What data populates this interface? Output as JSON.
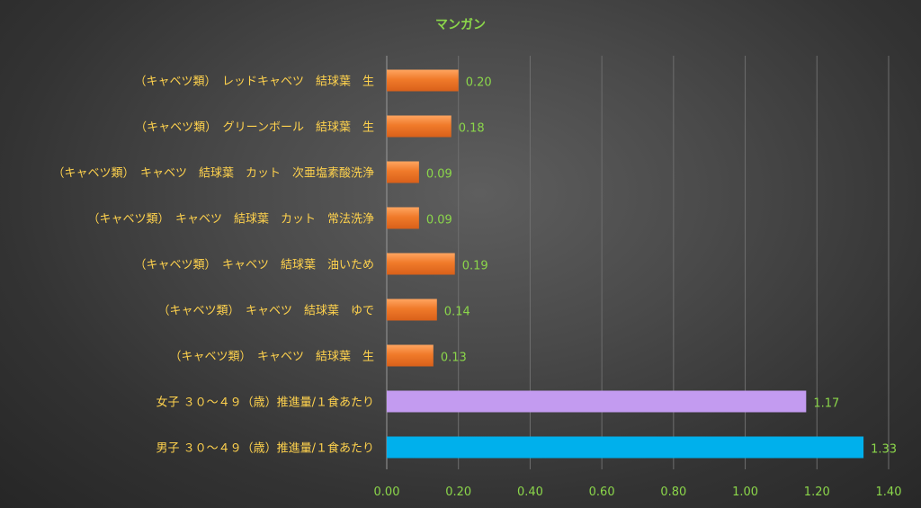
{
  "chart_data": {
    "type": "bar",
    "orientation": "horizontal",
    "title": "マンガン",
    "xlabel": "",
    "ylabel": "",
    "xlim": [
      0,
      1.4
    ],
    "ticks": [
      "0.00",
      "0.20",
      "0.40",
      "0.60",
      "0.80",
      "1.00",
      "1.20",
      "1.40"
    ],
    "grid": true,
    "legend": "none",
    "categories": [
      "（キャベツ類）　レッドキャベツ　結球葉　生",
      "（キャベツ類）　グリーンボール　結球葉　生",
      "（キャベツ類）　キャベツ　結球葉　カット　次亜塩素酸洗浄",
      "（キャベツ類）　キャベツ　結球葉　カット　常法洗浄",
      "（キャベツ類）　キャベツ　結球葉　油いため",
      "（キャベツ類）　キャベツ　結球葉　ゆで",
      "（キャベツ類）　キャベツ　結球葉　生",
      "女子 ３０～４９（歳）推進量/１食あたり",
      "男子 ３０～４９（歳）推進量/１食あたり"
    ],
    "values": [
      0.2,
      0.18,
      0.09,
      0.09,
      0.19,
      0.14,
      0.13,
      1.17,
      1.33
    ],
    "value_labels": [
      "0.20",
      "0.18",
      "0.09",
      "0.09",
      "0.19",
      "0.14",
      "0.13",
      "1.17",
      "1.33"
    ],
    "bar_colors": [
      "#f07a2a",
      "#f07a2a",
      "#f07a2a",
      "#f07a2a",
      "#f07a2a",
      "#f07a2a",
      "#f07a2a",
      "#c39bf0",
      "#00b0ec"
    ],
    "colors": {
      "title": "#8bd64a",
      "category_label": "#ffd24d",
      "tick_label": "#8bd64a",
      "value_label": "#8bd64a",
      "gridline": "#6e6e6e"
    }
  }
}
